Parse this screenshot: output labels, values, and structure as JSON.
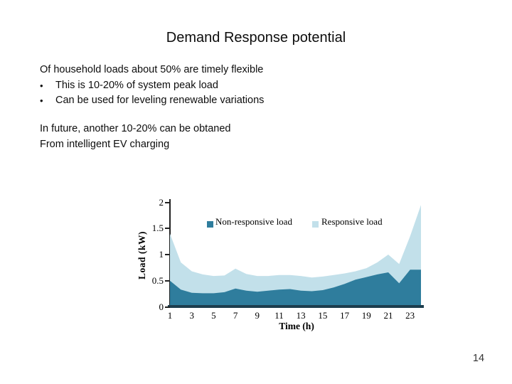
{
  "slide": {
    "title": "Demand Response potential",
    "body": {
      "intro_line": "Of household loads about 50% are timely flexible",
      "bullet_glyph": "•",
      "bullets": [
        "This is 10-20% of system peak load",
        "Can be used for leveling renewable variations"
      ],
      "future_line1": "In future, another 10-20% can be obtaned",
      "future_line2": "From intelligent EV charging"
    },
    "page_number": "14"
  },
  "chart_data": {
    "type": "area",
    "stacked": true,
    "title": "",
    "xlabel": "Time (h)",
    "ylabel": "Load (kW)",
    "xlim": [
      1,
      24
    ],
    "ylim": [
      0,
      2
    ],
    "x_ticks": [
      1,
      3,
      5,
      7,
      9,
      11,
      13,
      15,
      17,
      19,
      21,
      23
    ],
    "y_ticks": [
      0,
      0.5,
      1,
      1.5,
      2
    ],
    "grid": false,
    "legend_position": "top-inside",
    "axis_color": "#1d3e4e",
    "x": [
      1,
      2,
      3,
      4,
      5,
      6,
      7,
      8,
      9,
      10,
      11,
      12,
      13,
      14,
      15,
      16,
      17,
      18,
      19,
      20,
      21,
      22,
      23,
      24
    ],
    "series": [
      {
        "name": "Non-responsive load",
        "color": "#2f7d9d",
        "values": [
          0.5,
          0.33,
          0.27,
          0.26,
          0.26,
          0.28,
          0.35,
          0.31,
          0.29,
          0.31,
          0.33,
          0.34,
          0.31,
          0.3,
          0.32,
          0.37,
          0.44,
          0.52,
          0.57,
          0.62,
          0.66,
          0.45,
          0.71,
          0.71
        ]
      },
      {
        "name": "Responsive load",
        "color": "#c2e0ea",
        "values": [
          0.9,
          0.52,
          0.41,
          0.36,
          0.33,
          0.32,
          0.38,
          0.32,
          0.3,
          0.28,
          0.28,
          0.27,
          0.28,
          0.26,
          0.26,
          0.24,
          0.2,
          0.16,
          0.17,
          0.23,
          0.34,
          0.37,
          0.64,
          1.24
        ]
      }
    ]
  }
}
